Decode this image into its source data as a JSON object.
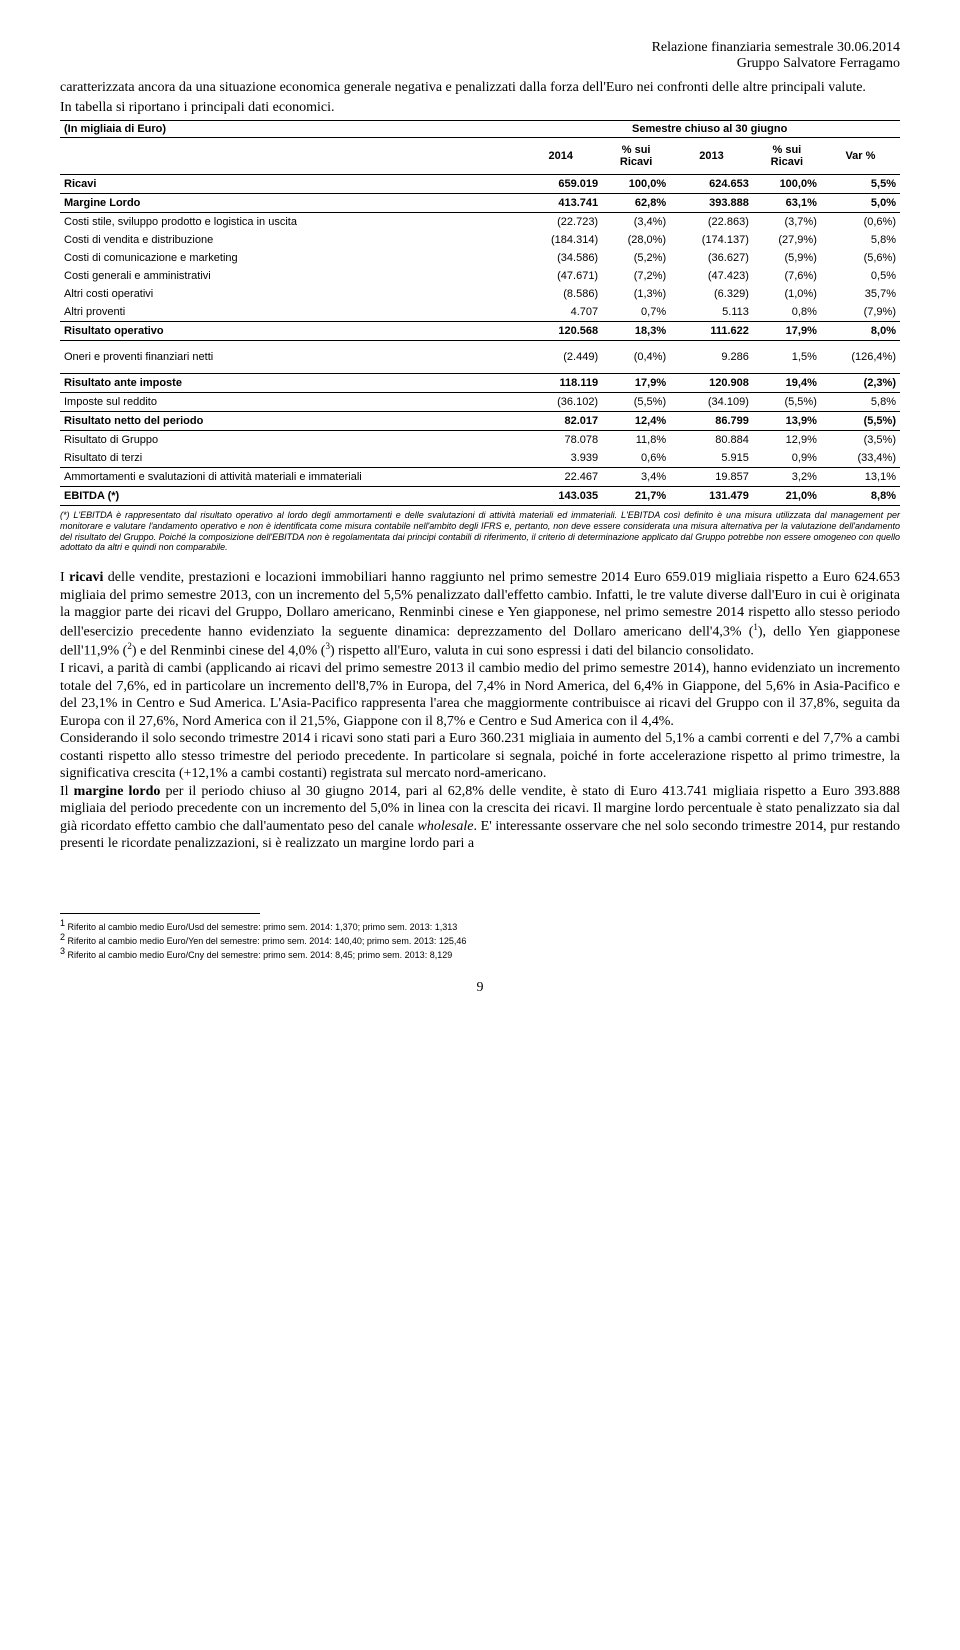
{
  "header": {
    "line1": "Relazione finanziaria semestrale 30.06.2014",
    "line2": "Gruppo Salvatore Ferragamo"
  },
  "intro": {
    "p1": "caratterizzata ancora da una situazione economica generale negativa e penalizzati dalla forza dell'Euro nei confronti delle altre principali valute.",
    "p2": "In tabella si riportano i principali dati economici."
  },
  "table": {
    "title_left": "(In migliaia di Euro)",
    "title_right": "Semestre chiuso al 30 giugno",
    "col_2014": "2014",
    "col_pct1": "% sui Ricavi",
    "col_2013": "2013",
    "col_pct2": "% sui Ricavi",
    "col_var": "Var %",
    "rows": [
      {
        "label": "Ricavi",
        "c1": "659.019",
        "c2": "100,0%",
        "c3": "624.653",
        "c4": "100,0%",
        "c5": "5,5%",
        "bold": true,
        "bt": true,
        "bb": true
      },
      {
        "label": "Margine Lordo",
        "c1": "413.741",
        "c2": "62,8%",
        "c3": "393.888",
        "c4": "63,1%",
        "c5": "5,0%",
        "bold": true,
        "bb": true
      },
      {
        "label": "Costi stile, sviluppo prodotto e logistica in uscita",
        "c1": "(22.723)",
        "c2": "(3,4%)",
        "c3": "(22.863)",
        "c4": "(3,7%)",
        "c5": "(0,6%)"
      },
      {
        "label": "Costi di vendita e distribuzione",
        "c1": "(184.314)",
        "c2": "(28,0%)",
        "c3": "(174.137)",
        "c4": "(27,9%)",
        "c5": "5,8%"
      },
      {
        "label": "Costi di comunicazione e marketing",
        "c1": "(34.586)",
        "c2": "(5,2%)",
        "c3": "(36.627)",
        "c4": "(5,9%)",
        "c5": "(5,6%)"
      },
      {
        "label": "Costi generali e amministrativi",
        "c1": "(47.671)",
        "c2": "(7,2%)",
        "c3": "(47.423)",
        "c4": "(7,6%)",
        "c5": "0,5%"
      },
      {
        "label": "Altri costi operativi",
        "c1": "(8.586)",
        "c2": "(1,3%)",
        "c3": "(6.329)",
        "c4": "(1,0%)",
        "c5": "35,7%"
      },
      {
        "label": "Altri proventi",
        "c1": "4.707",
        "c2": "0,7%",
        "c3": "5.113",
        "c4": "0,8%",
        "c5": "(7,9%)",
        "bb": true
      },
      {
        "label": "Risultato operativo",
        "c1": "120.568",
        "c2": "18,3%",
        "c3": "111.622",
        "c4": "17,9%",
        "c5": "8,0%",
        "bold": true,
        "bb": true
      },
      {
        "label": "Oneri e proventi finanziari netti",
        "c1": "(2.449)",
        "c2": "(0,4%)",
        "c3": "9.286",
        "c4": "1,5%",
        "c5": "(126,4%)",
        "bb": true,
        "pad": true
      },
      {
        "label": "Risultato ante imposte",
        "c1": "118.119",
        "c2": "17,9%",
        "c3": "120.908",
        "c4": "19,4%",
        "c5": "(2,3%)",
        "bold": true,
        "bb": true
      },
      {
        "label": "Imposte sul reddito",
        "c1": "(36.102)",
        "c2": "(5,5%)",
        "c3": "(34.109)",
        "c4": "(5,5%)",
        "c5": "5,8%",
        "bb": true
      },
      {
        "label": "Risultato netto del periodo",
        "c1": "82.017",
        "c2": "12,4%",
        "c3": "86.799",
        "c4": "13,9%",
        "c5": "(5,5%)",
        "bold": true,
        "bb": true
      },
      {
        "label": "Risultato di Gruppo",
        "c1": "78.078",
        "c2": "11,8%",
        "c3": "80.884",
        "c4": "12,9%",
        "c5": "(3,5%)"
      },
      {
        "label": "Risultato di terzi",
        "c1": "3.939",
        "c2": "0,6%",
        "c3": "5.915",
        "c4": "0,9%",
        "c5": "(33,4%)",
        "bb": true
      },
      {
        "label": "Ammortamenti e svalutazioni di attività materiali e immateriali",
        "c1": "22.467",
        "c2": "3,4%",
        "c3": "19.857",
        "c4": "3,2%",
        "c5": "13,1%"
      },
      {
        "label": "EBITDA (*)",
        "c1": "143.035",
        "c2": "21,7%",
        "c3": "131.479",
        "c4": "21,0%",
        "c5": "8,8%",
        "bold": true,
        "bt": true,
        "bb": true
      }
    ],
    "footnote": "(*) L'EBITDA è rappresentato dal risultato operativo al lordo degli ammortamenti e delle svalutazioni di attività materiali ed immateriali. L'EBITDA così definito è una misura utilizzata dal management per monitorare e valutare l'andamento operativo e non è identificata come misura contabile nell'ambito degli IFRS e, pertanto, non deve essere considerata una misura alternativa per la valutazione dell'andamento del risultato del Gruppo. Poiché la composizione dell'EBITDA non è regolamentata dai principi contabili di riferimento, il criterio di determinazione applicato dal Gruppo potrebbe non essere omogeneo con quello adottato da altri e quindi non comparabile."
  },
  "body": {
    "p1a": "I ",
    "p1b": "ricavi",
    "p1c": " delle vendite, prestazioni e locazioni immobiliari hanno raggiunto nel primo semestre 2014 Euro 659.019 migliaia rispetto a Euro 624.653 migliaia del primo semestre 2013, con un incremento del 5,5% penalizzato dall'effetto cambio. Infatti, le tre valute diverse dall'Euro in cui è originata la maggior parte dei ricavi del Gruppo, Dollaro americano, Renminbi cinese e Yen giapponese, nel primo semestre 2014 rispetto allo stesso periodo dell'esercizio precedente hanno evidenziato la seguente dinamica: deprezzamento del Dollaro americano dell'4,3% (",
    "p1s1": "1",
    "p1d": "), dello Yen giapponese dell'11,9% (",
    "p1s2": "2",
    "p1e": ") e del Renminbi cinese del 4,0% (",
    "p1s3": "3",
    "p1f": ") rispetto all'Euro, valuta in cui sono espressi i dati del bilancio consolidato.",
    "p2": "I ricavi, a parità di cambi (applicando ai ricavi del primo semestre 2013 il cambio medio del primo semestre 2014), hanno evidenziato un incremento totale del 7,6%, ed in particolare un incremento dell'8,7% in Europa, del 7,4% in Nord America, del 6,4% in Giappone, del 5,6% in Asia-Pacifico e del 23,1% in Centro e Sud America. L'Asia-Pacifico rappresenta l'area che maggiormente contribuisce ai ricavi del Gruppo con il 37,8%, seguita da Europa con il 27,6%, Nord America con il 21,5%, Giappone con il 8,7% e Centro e Sud America con il 4,4%.",
    "p3": "Considerando il solo secondo trimestre 2014 i ricavi sono stati pari a Euro 360.231 migliaia in aumento del 5,1% a cambi correnti e del 7,7% a cambi costanti rispetto allo stesso trimestre del periodo precedente. In particolare si segnala, poiché in forte accelerazione rispetto al primo trimestre, la significativa crescita (+12,1% a cambi costanti) registrata sul mercato nord-americano.",
    "p4a": "Il ",
    "p4b": "margine lordo",
    "p4c": " per il periodo chiuso al 30 giugno 2014, pari al 62,8% delle vendite, è stato di Euro 413.741 migliaia rispetto a Euro 393.888 migliaia del periodo precedente con un incremento del 5,0% in linea con la crescita dei ricavi. Il margine lordo percentuale è stato penalizzato sia dal già ricordato effetto cambio che dall'aumentato peso del canale ",
    "p4d": "wholesale",
    "p4e": ". E' interessante osservare che nel solo secondo trimestre 2014, pur restando presenti le ricordate penalizzazioni, si è realizzato un margine lordo pari a"
  },
  "footnotes": {
    "f1": "Riferito al cambio medio Euro/Usd del semestre: primo sem. 2014:   1,370;  primo sem. 2013: 1,313",
    "f2": "Riferito al cambio medio Euro/Yen del semestre: primo sem. 2014: 140,40;  primo sem. 2013: 125,46",
    "f3": "Riferito al cambio medio Euro/Cny del semestre: primo sem. 2014:   8,45;  primo sem. 2013: 8,129"
  },
  "page_number": "9"
}
